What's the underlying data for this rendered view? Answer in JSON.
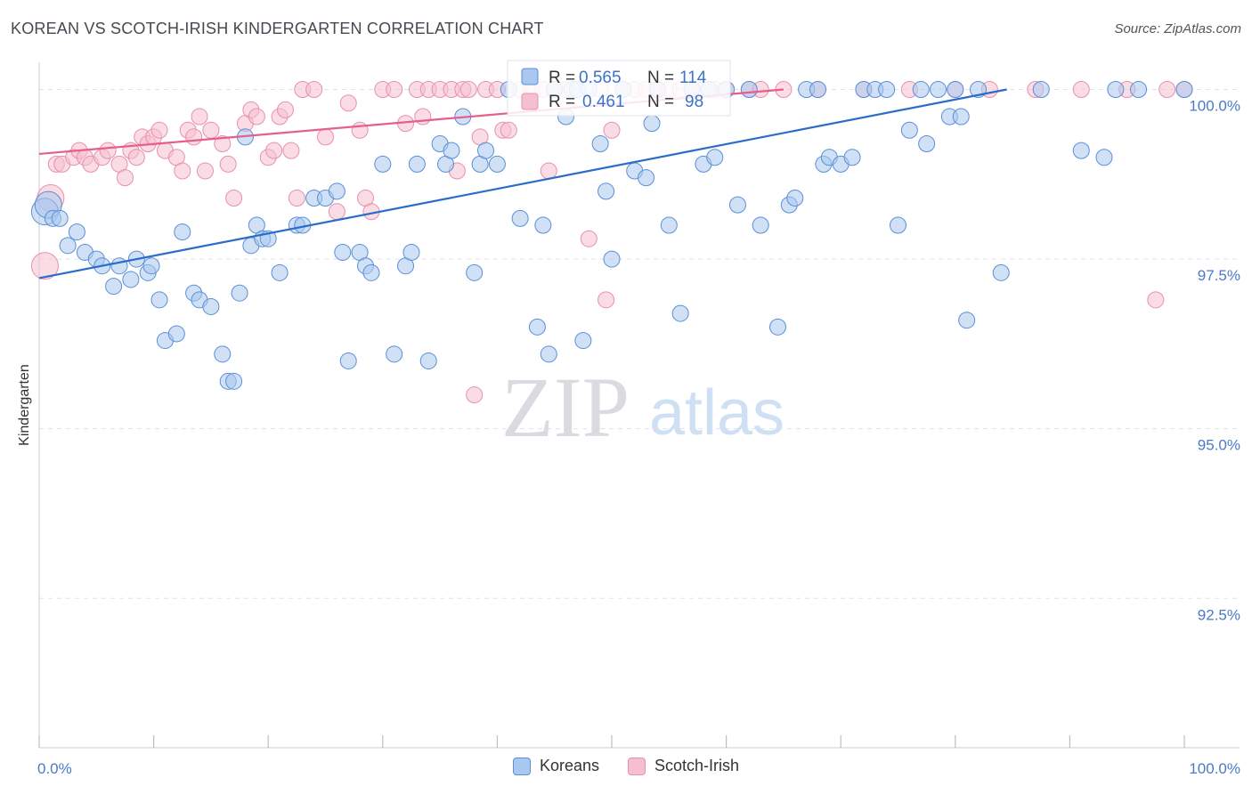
{
  "header": {
    "title": "KOREAN VS SCOTCH-IRISH KINDERGARTEN CORRELATION CHART",
    "source": "Source: ZipAtlas.com"
  },
  "watermark": {
    "zip": "ZIP",
    "atlas": "atlas"
  },
  "colors": {
    "koreans_fill": "#aac8ef",
    "koreans_stroke": "#5b8ed8",
    "koreans_line": "#2a6cc9",
    "scotch_fill": "#f6bfd0",
    "scotch_stroke": "#e890ad",
    "scotch_line": "#e55f8a",
    "value_text": "#3a73c8",
    "grid": "#dde2ea"
  },
  "stats": {
    "r_label": "R =",
    "n_label": "N =",
    "koreans": {
      "r": "0.565",
      "n": "114"
    },
    "scotch_irish": {
      "r": "0.461",
      "n": "98"
    }
  },
  "chart_data": {
    "type": "scatter",
    "title": "KOREAN VS SCOTCH-IRISH KINDERGARTEN CORRELATION CHART",
    "xlabel": "",
    "ylabel": "Kindergarten",
    "xlim": [
      0,
      100
    ],
    "ylim": [
      90.3,
      100.4
    ],
    "x_tick_labels": [
      "0.0%",
      "100.0%"
    ],
    "y_ticks": [
      {
        "value": 92.5,
        "label": "92.5%"
      },
      {
        "value": 95.0,
        "label": "95.0%"
      },
      {
        "value": 97.5,
        "label": "97.5%"
      },
      {
        "value": 100.0,
        "label": "100.0%"
      }
    ],
    "series": [
      {
        "name": "Koreans",
        "r": 0.565,
        "n": 114,
        "trend": {
          "x": [
            0,
            84.5
          ],
          "y": [
            97.22,
            100.0
          ]
        },
        "points": [
          [
            0.5,
            98.2
          ],
          [
            0.8,
            98.3
          ],
          [
            1.2,
            98.1
          ],
          [
            1.8,
            98.1
          ],
          [
            2.5,
            97.7
          ],
          [
            3.3,
            97.9
          ],
          [
            4.0,
            97.6
          ],
          [
            5.0,
            97.5
          ],
          [
            5.5,
            97.4
          ],
          [
            6.5,
            97.1
          ],
          [
            7.0,
            97.4
          ],
          [
            8.0,
            97.2
          ],
          [
            8.5,
            97.5
          ],
          [
            9.5,
            97.3
          ],
          [
            9.8,
            97.4
          ],
          [
            10.5,
            96.9
          ],
          [
            11.0,
            96.3
          ],
          [
            12.0,
            96.4
          ],
          [
            12.5,
            97.9
          ],
          [
            13.5,
            97.0
          ],
          [
            14.0,
            96.9
          ],
          [
            15.0,
            96.8
          ],
          [
            16.0,
            96.1
          ],
          [
            16.5,
            95.7
          ],
          [
            17.0,
            95.7
          ],
          [
            17.5,
            97.0
          ],
          [
            18.0,
            99.3
          ],
          [
            18.5,
            97.7
          ],
          [
            19.0,
            98.0
          ],
          [
            19.5,
            97.8
          ],
          [
            20.0,
            97.8
          ],
          [
            21.0,
            97.3
          ],
          [
            22.5,
            98.0
          ],
          [
            23.0,
            98.0
          ],
          [
            24.0,
            98.4
          ],
          [
            25.0,
            98.4
          ],
          [
            26.0,
            98.5
          ],
          [
            26.5,
            97.6
          ],
          [
            27.0,
            96.0
          ],
          [
            28.0,
            97.6
          ],
          [
            28.5,
            97.4
          ],
          [
            29.0,
            97.3
          ],
          [
            30.0,
            98.9
          ],
          [
            31.0,
            96.1
          ],
          [
            32.0,
            97.4
          ],
          [
            32.5,
            97.6
          ],
          [
            33.0,
            98.9
          ],
          [
            34.0,
            96.0
          ],
          [
            35.0,
            99.2
          ],
          [
            35.5,
            98.9
          ],
          [
            36.0,
            99.1
          ],
          [
            37.0,
            99.6
          ],
          [
            38.0,
            97.3
          ],
          [
            38.5,
            98.9
          ],
          [
            39.0,
            99.1
          ],
          [
            40.0,
            98.9
          ],
          [
            41.0,
            100.0
          ],
          [
            42.0,
            98.1
          ],
          [
            43.5,
            96.5
          ],
          [
            44.0,
            98.0
          ],
          [
            44.5,
            96.1
          ],
          [
            45.0,
            100.0
          ],
          [
            46.0,
            99.6
          ],
          [
            46.5,
            100.0
          ],
          [
            47.0,
            100.0
          ],
          [
            47.5,
            96.3
          ],
          [
            48.0,
            100.0
          ],
          [
            49.0,
            99.2
          ],
          [
            49.5,
            98.5
          ],
          [
            50.0,
            97.5
          ],
          [
            51.0,
            100.0
          ],
          [
            52.0,
            98.8
          ],
          [
            53.0,
            98.7
          ],
          [
            53.5,
            99.5
          ],
          [
            54.0,
            100.0
          ],
          [
            55.0,
            98.0
          ],
          [
            56.0,
            96.7
          ],
          [
            57.0,
            100.0
          ],
          [
            58.0,
            98.9
          ],
          [
            58.5,
            100.0
          ],
          [
            59.0,
            99.0
          ],
          [
            60.0,
            100.0
          ],
          [
            61.0,
            98.3
          ],
          [
            62.0,
            100.0
          ],
          [
            63.0,
            98.0
          ],
          [
            64.5,
            96.5
          ],
          [
            65.5,
            98.3
          ],
          [
            66.0,
            98.4
          ],
          [
            67.0,
            100.0
          ],
          [
            68.0,
            100.0
          ],
          [
            68.5,
            98.9
          ],
          [
            69.0,
            99.0
          ],
          [
            70.0,
            98.9
          ],
          [
            71.0,
            99.0
          ],
          [
            72.0,
            100.0
          ],
          [
            73.0,
            100.0
          ],
          [
            74.0,
            100.0
          ],
          [
            75.0,
            98.0
          ],
          [
            76.0,
            99.4
          ],
          [
            77.0,
            100.0
          ],
          [
            77.5,
            99.2
          ],
          [
            78.5,
            100.0
          ],
          [
            79.5,
            99.6
          ],
          [
            80.0,
            100.0
          ],
          [
            80.5,
            99.6
          ],
          [
            81.0,
            96.6
          ],
          [
            82.0,
            100.0
          ],
          [
            84.0,
            97.3
          ],
          [
            87.5,
            100.0
          ],
          [
            91.0,
            99.1
          ],
          [
            93.0,
            99.0
          ],
          [
            96.0,
            100.0
          ],
          [
            100.0,
            100.0
          ],
          [
            94.0,
            100.0
          ]
        ]
      },
      {
        "name": "Scotch-Irish",
        "r": 0.461,
        "n": 98,
        "trend": {
          "x": [
            0,
            65.0
          ],
          "y": [
            99.05,
            100.0
          ]
        },
        "points": [
          [
            0.5,
            97.4
          ],
          [
            1.0,
            98.4
          ],
          [
            1.5,
            98.9
          ],
          [
            2.0,
            98.9
          ],
          [
            3.0,
            99.0
          ],
          [
            3.5,
            99.1
          ],
          [
            4.0,
            99.0
          ],
          [
            4.5,
            98.9
          ],
          [
            5.5,
            99.0
          ],
          [
            6.0,
            99.1
          ],
          [
            7.0,
            98.9
          ],
          [
            7.5,
            98.7
          ],
          [
            8.0,
            99.1
          ],
          [
            8.5,
            99.0
          ],
          [
            9.0,
            99.3
          ],
          [
            9.5,
            99.2
          ],
          [
            10.0,
            99.3
          ],
          [
            10.5,
            99.4
          ],
          [
            11.0,
            99.1
          ],
          [
            12.0,
            99.0
          ],
          [
            12.5,
            98.8
          ],
          [
            13.0,
            99.4
          ],
          [
            13.5,
            99.3
          ],
          [
            14.0,
            99.6
          ],
          [
            14.5,
            98.8
          ],
          [
            15.0,
            99.4
          ],
          [
            16.0,
            99.2
          ],
          [
            16.5,
            98.9
          ],
          [
            17.0,
            98.4
          ],
          [
            18.0,
            99.5
          ],
          [
            18.5,
            99.7
          ],
          [
            19.0,
            99.6
          ],
          [
            20.0,
            99.0
          ],
          [
            20.5,
            99.1
          ],
          [
            21.0,
            99.6
          ],
          [
            21.5,
            99.7
          ],
          [
            22.0,
            99.1
          ],
          [
            22.5,
            98.4
          ],
          [
            23.0,
            100.0
          ],
          [
            24.0,
            100.0
          ],
          [
            25.0,
            99.3
          ],
          [
            26.0,
            98.2
          ],
          [
            27.0,
            99.8
          ],
          [
            28.0,
            99.4
          ],
          [
            28.5,
            98.4
          ],
          [
            29.0,
            98.2
          ],
          [
            30.0,
            100.0
          ],
          [
            31.0,
            100.0
          ],
          [
            32.0,
            99.5
          ],
          [
            33.0,
            100.0
          ],
          [
            33.5,
            99.6
          ],
          [
            34.0,
            100.0
          ],
          [
            35.0,
            100.0
          ],
          [
            36.0,
            100.0
          ],
          [
            36.5,
            98.8
          ],
          [
            37.0,
            100.0
          ],
          [
            37.5,
            100.0
          ],
          [
            38.0,
            95.5
          ],
          [
            38.5,
            99.3
          ],
          [
            39.0,
            100.0
          ],
          [
            40.0,
            100.0
          ],
          [
            40.5,
            99.4
          ],
          [
            41.0,
            99.4
          ],
          [
            42.0,
            100.0
          ],
          [
            43.0,
            100.0
          ],
          [
            44.0,
            100.0
          ],
          [
            44.5,
            98.8
          ],
          [
            45.0,
            100.0
          ],
          [
            46.0,
            100.0
          ],
          [
            47.0,
            100.0
          ],
          [
            48.0,
            97.8
          ],
          [
            49.0,
            100.0
          ],
          [
            50.0,
            99.4
          ],
          [
            51.0,
            100.0
          ],
          [
            52.0,
            100.0
          ],
          [
            53.0,
            100.0
          ],
          [
            54.0,
            100.0
          ],
          [
            55.0,
            100.0
          ],
          [
            56.0,
            100.0
          ],
          [
            57.0,
            100.0
          ],
          [
            58.0,
            100.0
          ],
          [
            59.0,
            100.0
          ],
          [
            60.0,
            100.0
          ],
          [
            62.0,
            100.0
          ],
          [
            63.0,
            100.0
          ],
          [
            65.0,
            100.0
          ],
          [
            68.0,
            100.0
          ],
          [
            72.0,
            100.0
          ],
          [
            76.0,
            100.0
          ],
          [
            80.0,
            100.0
          ],
          [
            83.0,
            100.0
          ],
          [
            87.0,
            100.0
          ],
          [
            91.0,
            100.0
          ],
          [
            95.0,
            100.0
          ],
          [
            100.0,
            100.0
          ],
          [
            98.5,
            100.0
          ],
          [
            97.5,
            96.9
          ],
          [
            49.5,
            96.9
          ]
        ]
      }
    ],
    "legend": [
      "Koreans",
      "Scotch-Irish"
    ]
  }
}
